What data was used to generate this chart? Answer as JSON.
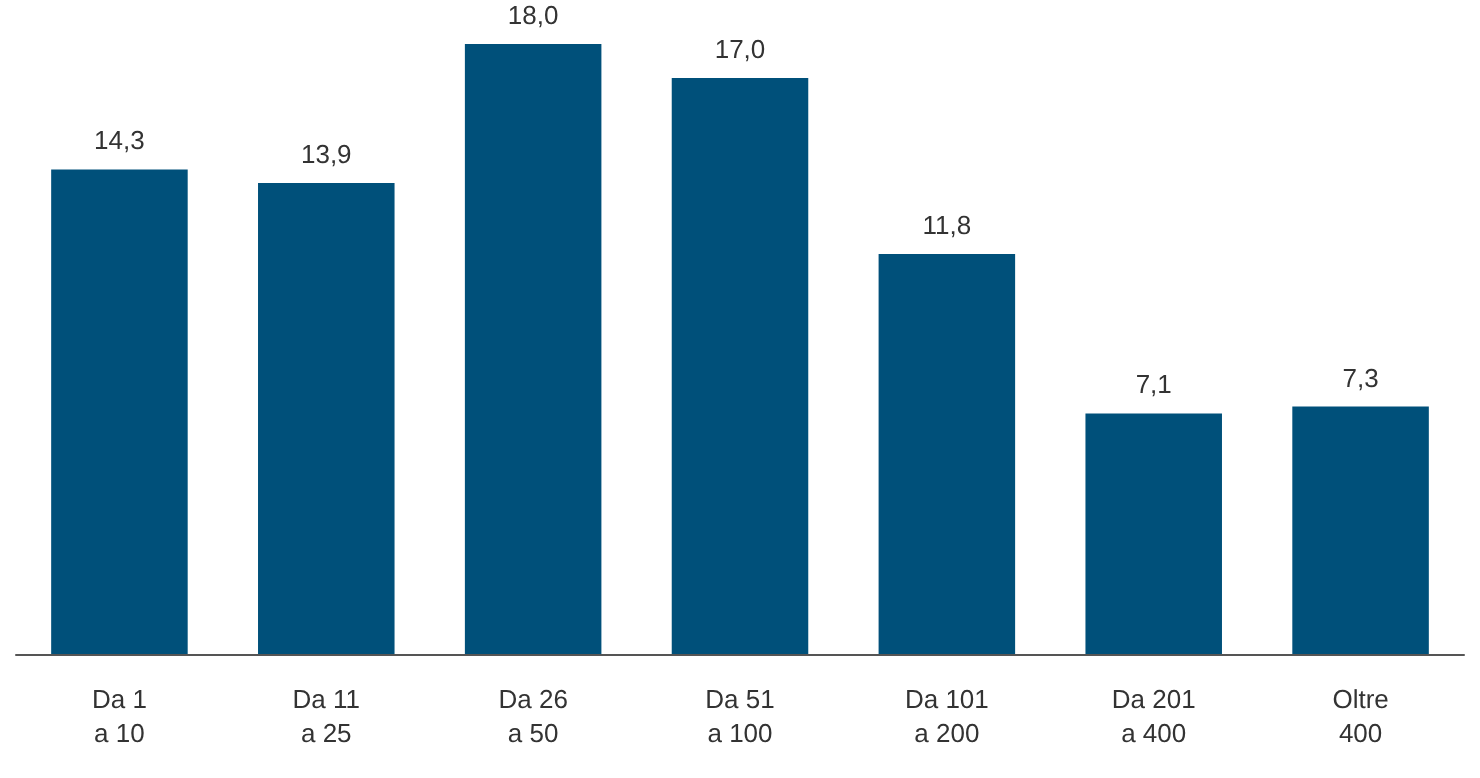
{
  "chart_data": {
    "type": "bar",
    "categories": [
      "Da 1\na 10",
      "Da 11\na 25",
      "Da 26\na 50",
      "Da 51\na 100",
      "Da 101\na 200",
      "Da 201\na 400",
      "Oltre\n400"
    ],
    "values": [
      14.3,
      13.9,
      18.0,
      17.0,
      11.8,
      7.1,
      7.3
    ],
    "value_labels": [
      "14,3",
      "13,9",
      "18,0",
      "17,0",
      "11,8",
      "7,1",
      "7,3"
    ],
    "color": "#00507a"
  }
}
